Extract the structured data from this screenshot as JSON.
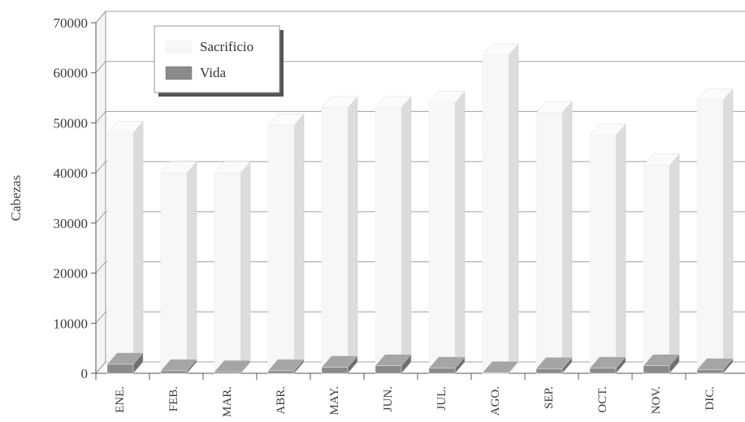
{
  "chart_data": {
    "type": "bar",
    "title": "",
    "xlabel": "",
    "ylabel": "Cabezas",
    "ylim": [
      0,
      70000
    ],
    "yticks": [
      0,
      10000,
      20000,
      30000,
      40000,
      50000,
      60000,
      70000
    ],
    "grid": true,
    "legend_position": "top-left",
    "categories": [
      "ENE.",
      "FEB.",
      "MAR.",
      "ABR.",
      "MAY.",
      "JUN.",
      "JUL.",
      "AGO.",
      "SEP.",
      "OCT.",
      "NOV.",
      "DIC."
    ],
    "series": [
      {
        "name": "Sacrificio",
        "color": "#f7f7f7",
        "values": [
          48000,
          40000,
          40000,
          49500,
          53000,
          53000,
          54000,
          63500,
          52000,
          47500,
          41500,
          54500
        ]
      },
      {
        "name": "Vida",
        "color": "#8a8a8a",
        "values": [
          1800,
          500,
          300,
          500,
          1200,
          1500,
          1000,
          100,
          900,
          1000,
          1500,
          700
        ]
      }
    ]
  }
}
